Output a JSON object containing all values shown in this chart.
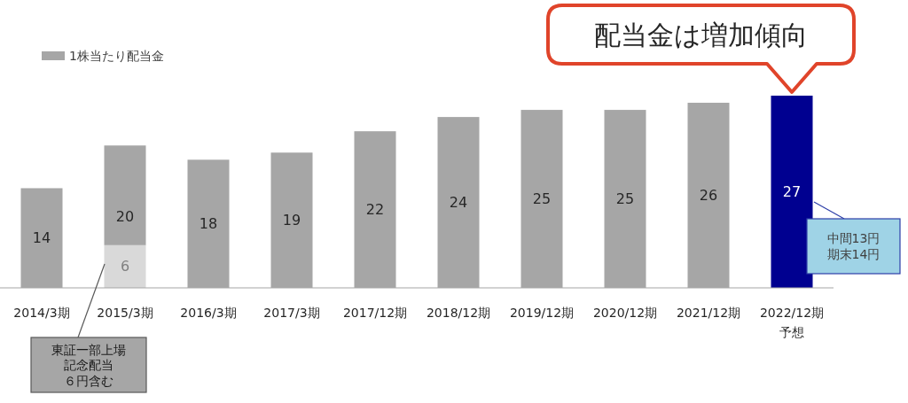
{
  "chart_data": {
    "type": "bar",
    "stacked": true,
    "categories": [
      "2014/3期",
      "2015/3期",
      "2016/3期",
      "2017/3期",
      "2017/12期",
      "2018/12期",
      "2019/12期",
      "2020/12期",
      "2021/12期",
      "2022/12期予想"
    ],
    "series": [
      {
        "color": "#d9d9d9",
        "values": [
          null,
          6,
          null,
          null,
          null,
          null,
          null,
          null,
          null,
          null
        ],
        "value_labels": [
          null,
          "6",
          null,
          null,
          null,
          null,
          null,
          null,
          null,
          null
        ]
      },
      {
        "name": "1株当たり配当金",
        "color": "#a6a6a6",
        "colors": [
          "#a6a6a6",
          "#a6a6a6",
          "#a6a6a6",
          "#a6a6a6",
          "#a6a6a6",
          "#a6a6a6",
          "#a6a6a6",
          "#a6a6a6",
          "#a6a6a6",
          "#000090"
        ],
        "values": [
          14,
          14,
          18,
          19,
          22,
          24,
          25,
          25,
          26,
          27
        ]
      }
    ],
    "totals": [
      "14",
      "20",
      "18",
      "19",
      "22",
      "24",
      "25",
      "25",
      "26",
      "27"
    ],
    "legend": "top left",
    "annotations": [
      {
        "text": "配当金は増加傾向",
        "x": "2022/12期予想",
        "y": 27
      },
      "東証一部上場記念配当６円含む",
      "中間13円期末14円"
    ]
  }
}
